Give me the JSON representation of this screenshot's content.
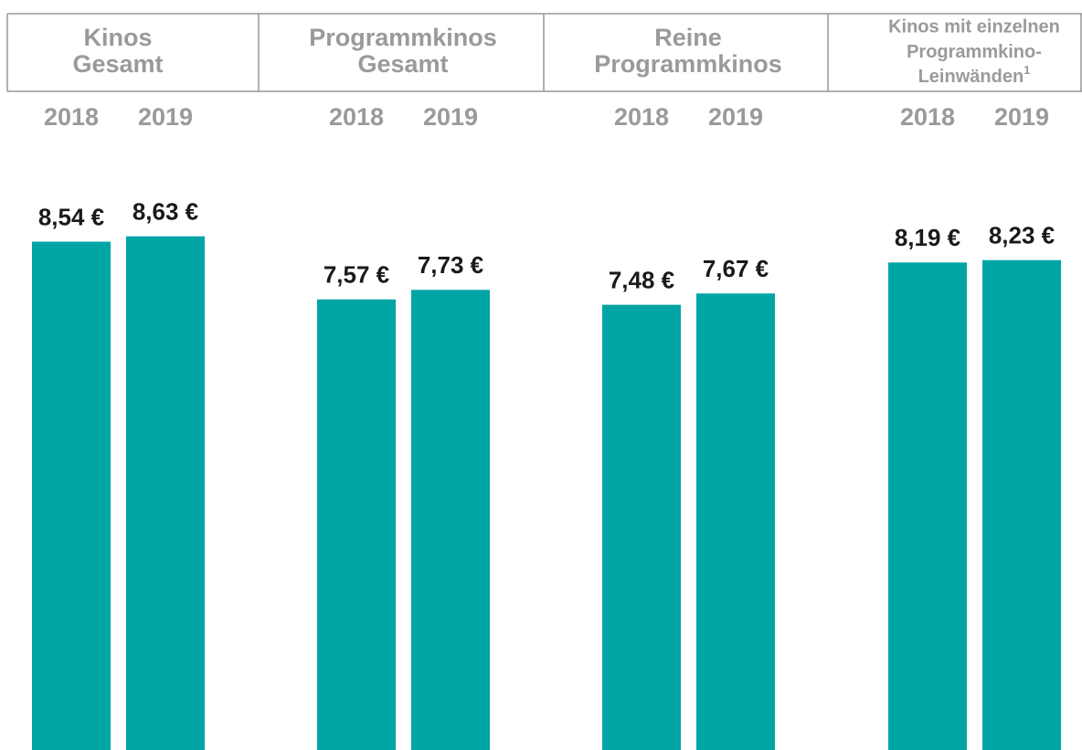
{
  "chart_data": {
    "type": "bar",
    "categories": [
      [
        "Kinos",
        "Gesamt"
      ],
      [
        "Programmkinos",
        "Gesamt"
      ],
      [
        "Reine",
        "Programmkinos"
      ],
      [
        "Kinos mit einzelnen",
        "Programmkino-",
        "Leinwänden"
      ]
    ],
    "category_footnotes": [
      null,
      null,
      null,
      "1"
    ],
    "series": [
      {
        "name": "2018",
        "color": "#00a5a6",
        "values": [
          8.54,
          7.57,
          7.48,
          8.19
        ],
        "value_labels": [
          "8,54 €",
          "7,57 €",
          "7,48 €",
          "8,19 €"
        ]
      },
      {
        "name": "2019",
        "color": "#00a5a6",
        "values": [
          8.63,
          7.73,
          7.67,
          8.23
        ],
        "value_labels": [
          "8,63 €",
          "7,73 €",
          "7,67 €",
          "8,23 €"
        ]
      }
    ],
    "ylim": [
      0,
      12.6
    ]
  }
}
